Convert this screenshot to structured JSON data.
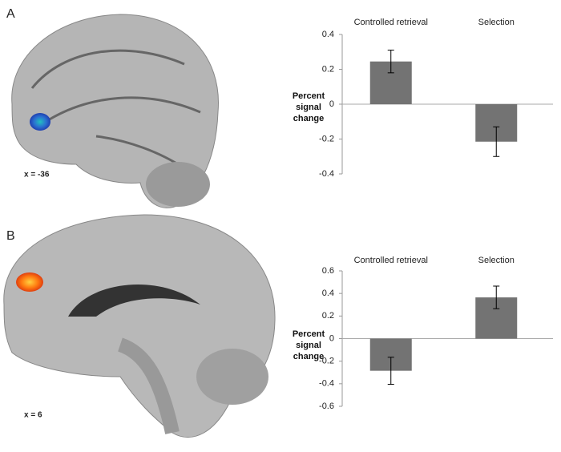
{
  "panels": [
    {
      "label": "A",
      "slice": "x = -36"
    },
    {
      "label": "B",
      "slice": "x = 6"
    }
  ],
  "chart_data": [
    {
      "type": "bar",
      "categories": [
        "Controlled retrieval",
        "Selection"
      ],
      "values": [
        0.245,
        -0.215
      ],
      "errors": [
        0.065,
        0.085
      ],
      "ylabel": "Percent signal change",
      "color": "#737373",
      "ylim": [
        -0.4,
        0.4
      ],
      "yticks": [
        -0.4,
        -0.2,
        0,
        0.2,
        0.4
      ]
    },
    {
      "type": "bar",
      "categories": [
        "Controlled retrieval",
        "Selection"
      ],
      "values": [
        -0.285,
        0.365
      ],
      "errors": [
        0.12,
        0.1
      ],
      "ylabel": "Percent signal change",
      "color": "#737373",
      "ylim": [
        -0.6,
        0.6
      ],
      "yticks": [
        -0.6,
        -0.4,
        -0.2,
        0,
        0.2,
        0.4,
        0.6
      ]
    }
  ]
}
